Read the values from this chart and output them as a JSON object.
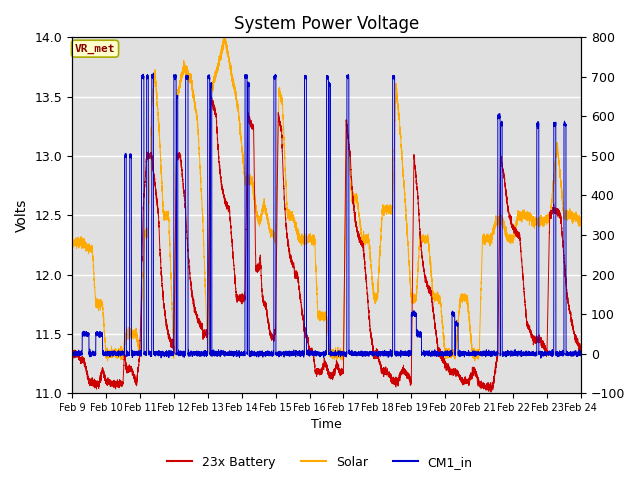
{
  "title": "System Power Voltage",
  "xlabel": "Time",
  "ylabel": "Volts",
  "xlim_days": [
    9,
    24
  ],
  "ylim_left": [
    11.0,
    14.0
  ],
  "ylim_right": [
    -100,
    800
  ],
  "yticks_left": [
    11.0,
    11.5,
    12.0,
    12.5,
    13.0,
    13.5,
    14.0
  ],
  "yticks_right": [
    -100,
    0,
    100,
    200,
    300,
    400,
    500,
    600,
    700,
    800
  ],
  "xtick_labels": [
    "Feb 9",
    "Feb 10",
    "Feb 11",
    "Feb 12",
    "Feb 13",
    "Feb 14",
    "Feb 15",
    "Feb 16",
    "Feb 17",
    "Feb 18",
    "Feb 19",
    "Feb 20",
    "Feb 21",
    "Feb 22",
    "Feb 23",
    "Feb 24"
  ],
  "color_battery": "#cc0000",
  "color_solar": "#ffaa00",
  "color_cm1": "#0000cc",
  "bg_color": "#e0e0e0",
  "grid_color": "#ffffff",
  "annotation_text": "VR_met",
  "annotation_bg": "#ffffcc",
  "annotation_border": "#aaaa00",
  "annotation_color": "#880000",
  "legend_labels": [
    "23x Battery",
    "Solar",
    "CM1_in"
  ]
}
